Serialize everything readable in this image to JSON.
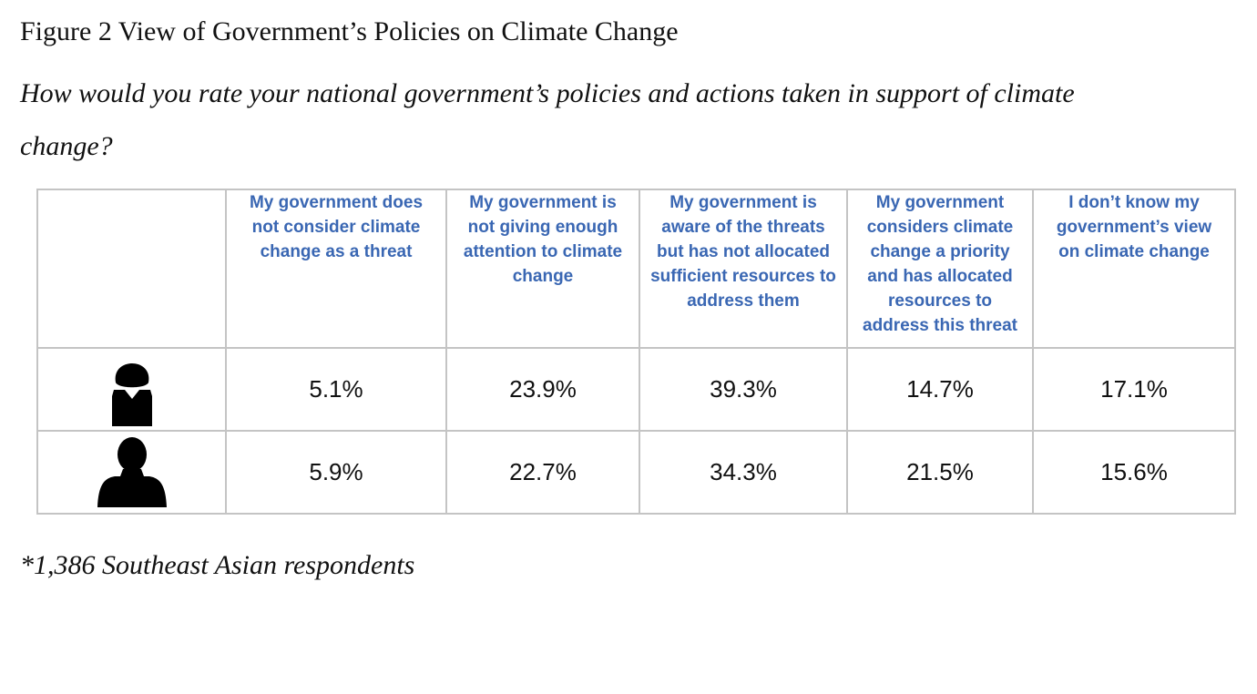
{
  "figure": {
    "title": "Figure 2 View of Government’s Policies on Climate Change",
    "question": "How would you rate your national government’s policies and actions taken in support of climate change?",
    "footnote": "*1,386 Southeast Asian respondents"
  },
  "colors": {
    "header_text": "#3a67b3",
    "grid": "#c4c4c4",
    "icon": "#000000"
  },
  "chart_data": {
    "type": "table",
    "columns": [
      "My government does not consider climate change as a  threat",
      "My government is not giving enough attention to climate change",
      "My government is aware of the threats but has not allocated sufficient resources to address them",
      "My government considers climate change a priority and has allocated resources to address this threat",
      "I don’t know my government’s view on climate change"
    ],
    "rows": [
      {
        "icon": "female-person-icon",
        "values": [
          "5.1%",
          "23.9%",
          "39.3%",
          "14.7%",
          "17.1%"
        ]
      },
      {
        "icon": "male-person-icon",
        "values": [
          "5.9%",
          "22.7%",
          "34.3%",
          "21.5%",
          "15.6%"
        ]
      }
    ]
  }
}
